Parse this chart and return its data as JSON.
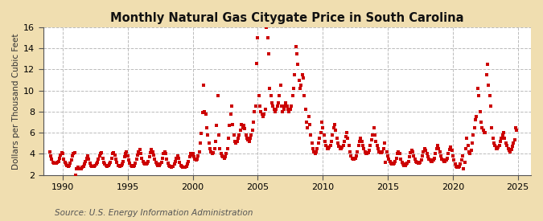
{
  "title": "Monthly Natural Gas Citygate Price in South Carolina",
  "ylabel": "Dollars per Thousand Cubic Feet",
  "source": "Source: U.S. Energy Information Administration",
  "outer_bg": "#f0deb0",
  "plot_bg": "#ffffff",
  "dot_color": "#cc0000",
  "xlim": [
    1988.5,
    2026.0
  ],
  "ylim": [
    2,
    16
  ],
  "yticks": [
    2,
    4,
    6,
    8,
    10,
    12,
    14,
    16
  ],
  "xticks": [
    1990,
    1995,
    2000,
    2005,
    2010,
    2015,
    2020,
    2025
  ],
  "data": [
    [
      1989.0,
      4.2
    ],
    [
      1989.083,
      3.8
    ],
    [
      1989.167,
      3.5
    ],
    [
      1989.25,
      3.2
    ],
    [
      1989.333,
      3.1
    ],
    [
      1989.417,
      3.1
    ],
    [
      1989.5,
      3.1
    ],
    [
      1989.583,
      3.2
    ],
    [
      1989.667,
      3.3
    ],
    [
      1989.75,
      3.6
    ],
    [
      1989.833,
      3.9
    ],
    [
      1989.917,
      4.1
    ],
    [
      1990.0,
      4.0
    ],
    [
      1990.083,
      3.5
    ],
    [
      1990.167,
      3.2
    ],
    [
      1990.25,
      3.0
    ],
    [
      1990.333,
      2.9
    ],
    [
      1990.417,
      2.8
    ],
    [
      1990.5,
      2.9
    ],
    [
      1990.583,
      3.1
    ],
    [
      1990.667,
      3.4
    ],
    [
      1990.75,
      3.8
    ],
    [
      1990.833,
      4.0
    ],
    [
      1990.917,
      4.1
    ],
    [
      1991.0,
      2.0
    ],
    [
      1991.083,
      2.6
    ],
    [
      1991.167,
      2.7
    ],
    [
      1991.25,
      2.6
    ],
    [
      1991.333,
      2.6
    ],
    [
      1991.417,
      2.6
    ],
    [
      1991.5,
      2.7
    ],
    [
      1991.583,
      2.8
    ],
    [
      1991.667,
      3.0
    ],
    [
      1991.75,
      3.3
    ],
    [
      1991.833,
      3.6
    ],
    [
      1991.917,
      3.8
    ],
    [
      1992.0,
      3.5
    ],
    [
      1992.083,
      3.1
    ],
    [
      1992.167,
      2.9
    ],
    [
      1992.25,
      2.8
    ],
    [
      1992.333,
      2.8
    ],
    [
      1992.417,
      2.8
    ],
    [
      1992.5,
      2.9
    ],
    [
      1992.583,
      3.0
    ],
    [
      1992.667,
      3.2
    ],
    [
      1992.75,
      3.5
    ],
    [
      1992.833,
      3.8
    ],
    [
      1992.917,
      4.0
    ],
    [
      1993.0,
      4.1
    ],
    [
      1993.083,
      3.6
    ],
    [
      1993.167,
      3.2
    ],
    [
      1993.25,
      3.0
    ],
    [
      1993.333,
      2.9
    ],
    [
      1993.417,
      2.8
    ],
    [
      1993.5,
      2.9
    ],
    [
      1993.583,
      3.0
    ],
    [
      1993.667,
      3.2
    ],
    [
      1993.75,
      3.6
    ],
    [
      1993.833,
      4.0
    ],
    [
      1993.917,
      4.1
    ],
    [
      1994.0,
      3.9
    ],
    [
      1994.083,
      3.5
    ],
    [
      1994.167,
      3.2
    ],
    [
      1994.25,
      2.9
    ],
    [
      1994.333,
      2.9
    ],
    [
      1994.417,
      2.8
    ],
    [
      1994.5,
      2.9
    ],
    [
      1994.583,
      3.0
    ],
    [
      1994.667,
      3.3
    ],
    [
      1994.75,
      3.7
    ],
    [
      1994.833,
      4.0
    ],
    [
      1994.917,
      4.2
    ],
    [
      1995.0,
      3.8
    ],
    [
      1995.083,
      3.4
    ],
    [
      1995.167,
      3.1
    ],
    [
      1995.25,
      2.9
    ],
    [
      1995.333,
      2.8
    ],
    [
      1995.417,
      2.8
    ],
    [
      1995.5,
      2.9
    ],
    [
      1995.583,
      3.1
    ],
    [
      1995.667,
      3.5
    ],
    [
      1995.75,
      3.9
    ],
    [
      1995.833,
      4.2
    ],
    [
      1995.917,
      4.4
    ],
    [
      1996.0,
      4.0
    ],
    [
      1996.083,
      3.6
    ],
    [
      1996.167,
      3.3
    ],
    [
      1996.25,
      3.1
    ],
    [
      1996.333,
      3.0
    ],
    [
      1996.417,
      3.0
    ],
    [
      1996.5,
      3.1
    ],
    [
      1996.583,
      3.3
    ],
    [
      1996.667,
      3.7
    ],
    [
      1996.75,
      4.1
    ],
    [
      1996.833,
      4.4
    ],
    [
      1996.917,
      4.2
    ],
    [
      1997.0,
      3.9
    ],
    [
      1997.083,
      3.5
    ],
    [
      1997.167,
      3.2
    ],
    [
      1997.25,
      3.0
    ],
    [
      1997.333,
      2.9
    ],
    [
      1997.417,
      2.9
    ],
    [
      1997.5,
      3.0
    ],
    [
      1997.583,
      3.2
    ],
    [
      1997.667,
      3.6
    ],
    [
      1997.75,
      4.0
    ],
    [
      1997.833,
      4.2
    ],
    [
      1997.917,
      4.0
    ],
    [
      1998.0,
      3.5
    ],
    [
      1998.083,
      3.1
    ],
    [
      1998.167,
      2.9
    ],
    [
      1998.25,
      2.8
    ],
    [
      1998.333,
      2.7
    ],
    [
      1998.417,
      2.8
    ],
    [
      1998.5,
      2.8
    ],
    [
      1998.583,
      3.0
    ],
    [
      1998.667,
      3.3
    ],
    [
      1998.75,
      3.6
    ],
    [
      1998.833,
      3.8
    ],
    [
      1998.917,
      3.6
    ],
    [
      1999.0,
      3.2
    ],
    [
      1999.083,
      2.9
    ],
    [
      1999.167,
      2.8
    ],
    [
      1999.25,
      2.7
    ],
    [
      1999.333,
      2.7
    ],
    [
      1999.417,
      2.7
    ],
    [
      1999.5,
      2.8
    ],
    [
      1999.583,
      3.0
    ],
    [
      1999.667,
      3.3
    ],
    [
      1999.75,
      3.7
    ],
    [
      1999.833,
      4.0
    ],
    [
      1999.917,
      3.9
    ],
    [
      2000.0,
      4.0
    ],
    [
      2000.083,
      3.7
    ],
    [
      2000.167,
      3.5
    ],
    [
      2000.25,
      3.4
    ],
    [
      2000.333,
      3.5
    ],
    [
      2000.417,
      3.8
    ],
    [
      2000.5,
      4.2
    ],
    [
      2000.583,
      5.0
    ],
    [
      2000.667,
      5.9
    ],
    [
      2000.75,
      7.9
    ],
    [
      2000.833,
      10.5
    ],
    [
      2000.917,
      8.0
    ],
    [
      2001.0,
      7.8
    ],
    [
      2001.083,
      6.5
    ],
    [
      2001.167,
      5.8
    ],
    [
      2001.25,
      5.0
    ],
    [
      2001.333,
      4.5
    ],
    [
      2001.417,
      4.2
    ],
    [
      2001.5,
      4.0
    ],
    [
      2001.583,
      4.1
    ],
    [
      2001.667,
      4.5
    ],
    [
      2001.75,
      5.2
    ],
    [
      2001.833,
      6.7
    ],
    [
      2001.917,
      9.5
    ],
    [
      2002.0,
      5.8
    ],
    [
      2002.083,
      4.5
    ],
    [
      2002.167,
      4.0
    ],
    [
      2002.25,
      3.8
    ],
    [
      2002.333,
      3.7
    ],
    [
      2002.417,
      3.6
    ],
    [
      2002.5,
      3.7
    ],
    [
      2002.583,
      4.0
    ],
    [
      2002.667,
      4.5
    ],
    [
      2002.75,
      5.5
    ],
    [
      2002.833,
      6.7
    ],
    [
      2002.917,
      7.8
    ],
    [
      2003.0,
      8.5
    ],
    [
      2003.083,
      6.8
    ],
    [
      2003.167,
      5.8
    ],
    [
      2003.25,
      5.2
    ],
    [
      2003.333,
      5.0
    ],
    [
      2003.417,
      5.2
    ],
    [
      2003.5,
      5.5
    ],
    [
      2003.583,
      5.8
    ],
    [
      2003.667,
      6.2
    ],
    [
      2003.75,
      6.8
    ],
    [
      2003.833,
      6.5
    ],
    [
      2003.917,
      6.7
    ],
    [
      2004.0,
      6.4
    ],
    [
      2004.083,
      5.8
    ],
    [
      2004.167,
      5.5
    ],
    [
      2004.25,
      5.3
    ],
    [
      2004.333,
      5.2
    ],
    [
      2004.417,
      5.5
    ],
    [
      2004.5,
      5.8
    ],
    [
      2004.583,
      6.2
    ],
    [
      2004.667,
      7.0
    ],
    [
      2004.75,
      8.0
    ],
    [
      2004.833,
      8.5
    ],
    [
      2004.917,
      12.6
    ],
    [
      2005.0,
      15.0
    ],
    [
      2005.083,
      9.5
    ],
    [
      2005.167,
      8.5
    ],
    [
      2005.25,
      8.0
    ],
    [
      2005.333,
      7.8
    ],
    [
      2005.417,
      7.5
    ],
    [
      2005.5,
      7.8
    ],
    [
      2005.583,
      8.2
    ],
    [
      2005.667,
      16.0
    ],
    [
      2005.75,
      15.0
    ],
    [
      2005.833,
      13.5
    ],
    [
      2005.917,
      10.2
    ],
    [
      2006.0,
      9.5
    ],
    [
      2006.083,
      8.8
    ],
    [
      2006.167,
      8.5
    ],
    [
      2006.25,
      8.2
    ],
    [
      2006.333,
      8.0
    ],
    [
      2006.417,
      8.2
    ],
    [
      2006.5,
      8.5
    ],
    [
      2006.583,
      8.8
    ],
    [
      2006.667,
      9.5
    ],
    [
      2006.75,
      10.5
    ],
    [
      2006.833,
      8.5
    ],
    [
      2006.917,
      8.0
    ],
    [
      2007.0,
      8.2
    ],
    [
      2007.083,
      8.5
    ],
    [
      2007.167,
      8.8
    ],
    [
      2007.25,
      8.5
    ],
    [
      2007.333,
      8.2
    ],
    [
      2007.417,
      8.0
    ],
    [
      2007.5,
      8.2
    ],
    [
      2007.583,
      8.5
    ],
    [
      2007.667,
      9.5
    ],
    [
      2007.75,
      10.2
    ],
    [
      2007.833,
      11.5
    ],
    [
      2007.917,
      14.2
    ],
    [
      2008.0,
      13.5
    ],
    [
      2008.083,
      12.5
    ],
    [
      2008.167,
      11.0
    ],
    [
      2008.25,
      10.2
    ],
    [
      2008.333,
      10.5
    ],
    [
      2008.417,
      11.5
    ],
    [
      2008.5,
      11.2
    ],
    [
      2008.583,
      9.5
    ],
    [
      2008.667,
      8.2
    ],
    [
      2008.75,
      7.0
    ],
    [
      2008.833,
      6.5
    ],
    [
      2008.917,
      7.5
    ],
    [
      2009.0,
      6.8
    ],
    [
      2009.083,
      5.8
    ],
    [
      2009.167,
      5.0
    ],
    [
      2009.25,
      4.5
    ],
    [
      2009.333,
      4.2
    ],
    [
      2009.417,
      4.0
    ],
    [
      2009.5,
      4.2
    ],
    [
      2009.583,
      4.5
    ],
    [
      2009.667,
      5.0
    ],
    [
      2009.75,
      5.5
    ],
    [
      2009.833,
      6.0
    ],
    [
      2009.917,
      7.0
    ],
    [
      2010.0,
      6.5
    ],
    [
      2010.083,
      5.8
    ],
    [
      2010.167,
      5.2
    ],
    [
      2010.25,
      4.8
    ],
    [
      2010.333,
      4.5
    ],
    [
      2010.417,
      4.5
    ],
    [
      2010.5,
      4.6
    ],
    [
      2010.583,
      4.8
    ],
    [
      2010.667,
      5.2
    ],
    [
      2010.75,
      5.8
    ],
    [
      2010.833,
      6.5
    ],
    [
      2010.917,
      6.8
    ],
    [
      2011.0,
      6.2
    ],
    [
      2011.083,
      5.5
    ],
    [
      2011.167,
      5.0
    ],
    [
      2011.25,
      4.7
    ],
    [
      2011.333,
      4.5
    ],
    [
      2011.417,
      4.5
    ],
    [
      2011.5,
      4.6
    ],
    [
      2011.583,
      4.8
    ],
    [
      2011.667,
      5.2
    ],
    [
      2011.75,
      5.6
    ],
    [
      2011.833,
      6.0
    ],
    [
      2011.917,
      5.5
    ],
    [
      2012.0,
      4.8
    ],
    [
      2012.083,
      4.2
    ],
    [
      2012.167,
      3.8
    ],
    [
      2012.25,
      3.6
    ],
    [
      2012.333,
      3.5
    ],
    [
      2012.417,
      3.5
    ],
    [
      2012.5,
      3.6
    ],
    [
      2012.583,
      3.8
    ],
    [
      2012.667,
      4.2
    ],
    [
      2012.75,
      4.8
    ],
    [
      2012.833,
      5.2
    ],
    [
      2012.917,
      5.5
    ],
    [
      2013.0,
      5.2
    ],
    [
      2013.083,
      4.8
    ],
    [
      2013.167,
      4.5
    ],
    [
      2013.25,
      4.2
    ],
    [
      2013.333,
      4.0
    ],
    [
      2013.417,
      4.0
    ],
    [
      2013.5,
      4.1
    ],
    [
      2013.583,
      4.3
    ],
    [
      2013.667,
      4.8
    ],
    [
      2013.75,
      5.3
    ],
    [
      2013.833,
      5.8
    ],
    [
      2013.917,
      6.5
    ],
    [
      2014.0,
      5.8
    ],
    [
      2014.083,
      5.2
    ],
    [
      2014.167,
      4.8
    ],
    [
      2014.25,
      4.5
    ],
    [
      2014.333,
      4.2
    ],
    [
      2014.417,
      4.1
    ],
    [
      2014.5,
      4.1
    ],
    [
      2014.583,
      4.2
    ],
    [
      2014.667,
      4.5
    ],
    [
      2014.75,
      5.0
    ],
    [
      2014.833,
      3.2
    ],
    [
      2014.917,
      4.2
    ],
    [
      2015.0,
      3.8
    ],
    [
      2015.083,
      3.5
    ],
    [
      2015.167,
      3.3
    ],
    [
      2015.25,
      3.1
    ],
    [
      2015.333,
      3.0
    ],
    [
      2015.417,
      3.0
    ],
    [
      2015.5,
      3.1
    ],
    [
      2015.583,
      3.3
    ],
    [
      2015.667,
      3.6
    ],
    [
      2015.75,
      4.0
    ],
    [
      2015.833,
      4.2
    ],
    [
      2015.917,
      4.0
    ],
    [
      2016.0,
      3.5
    ],
    [
      2016.083,
      3.2
    ],
    [
      2016.167,
      3.0
    ],
    [
      2016.25,
      2.9
    ],
    [
      2016.333,
      2.9
    ],
    [
      2016.417,
      3.0
    ],
    [
      2016.5,
      3.1
    ],
    [
      2016.583,
      3.3
    ],
    [
      2016.667,
      3.7
    ],
    [
      2016.75,
      4.1
    ],
    [
      2016.833,
      4.3
    ],
    [
      2016.917,
      4.2
    ],
    [
      2017.0,
      3.8
    ],
    [
      2017.083,
      3.5
    ],
    [
      2017.167,
      3.3
    ],
    [
      2017.25,
      3.2
    ],
    [
      2017.333,
      3.1
    ],
    [
      2017.417,
      3.1
    ],
    [
      2017.5,
      3.2
    ],
    [
      2017.583,
      3.4
    ],
    [
      2017.667,
      3.8
    ],
    [
      2017.75,
      4.2
    ],
    [
      2017.833,
      4.5
    ],
    [
      2017.917,
      4.3
    ],
    [
      2018.0,
      4.0
    ],
    [
      2018.083,
      3.7
    ],
    [
      2018.167,
      3.5
    ],
    [
      2018.25,
      3.4
    ],
    [
      2018.333,
      3.3
    ],
    [
      2018.417,
      3.3
    ],
    [
      2018.5,
      3.4
    ],
    [
      2018.583,
      3.6
    ],
    [
      2018.667,
      4.0
    ],
    [
      2018.75,
      4.5
    ],
    [
      2018.833,
      4.8
    ],
    [
      2018.917,
      4.5
    ],
    [
      2019.0,
      4.2
    ],
    [
      2019.083,
      3.8
    ],
    [
      2019.167,
      3.5
    ],
    [
      2019.25,
      3.4
    ],
    [
      2019.333,
      3.3
    ],
    [
      2019.417,
      3.3
    ],
    [
      2019.5,
      3.4
    ],
    [
      2019.583,
      3.6
    ],
    [
      2019.667,
      4.0
    ],
    [
      2019.75,
      4.4
    ],
    [
      2019.833,
      4.6
    ],
    [
      2019.917,
      4.3
    ],
    [
      2020.0,
      3.8
    ],
    [
      2020.083,
      3.4
    ],
    [
      2020.167,
      3.0
    ],
    [
      2020.25,
      2.8
    ],
    [
      2020.333,
      2.7
    ],
    [
      2020.417,
      2.7
    ],
    [
      2020.5,
      2.8
    ],
    [
      2020.583,
      3.0
    ],
    [
      2020.667,
      3.4
    ],
    [
      2020.75,
      3.8
    ],
    [
      2020.833,
      2.6
    ],
    [
      2020.917,
      3.2
    ],
    [
      2021.0,
      4.5
    ],
    [
      2021.083,
      5.5
    ],
    [
      2021.167,
      4.8
    ],
    [
      2021.25,
      4.2
    ],
    [
      2021.333,
      4.0
    ],
    [
      2021.417,
      4.3
    ],
    [
      2021.5,
      5.0
    ],
    [
      2021.583,
      5.8
    ],
    [
      2021.667,
      6.5
    ],
    [
      2021.75,
      7.2
    ],
    [
      2021.833,
      7.5
    ],
    [
      2021.917,
      10.2
    ],
    [
      2022.0,
      9.5
    ],
    [
      2022.083,
      8.0
    ],
    [
      2022.167,
      7.0
    ],
    [
      2022.25,
      6.5
    ],
    [
      2022.333,
      6.2
    ],
    [
      2022.417,
      6.0
    ],
    [
      2022.5,
      6.0
    ],
    [
      2022.583,
      11.5
    ],
    [
      2022.667,
      12.5
    ],
    [
      2022.75,
      10.5
    ],
    [
      2022.833,
      9.5
    ],
    [
      2022.917,
      8.5
    ],
    [
      2023.0,
      6.5
    ],
    [
      2023.083,
      5.5
    ],
    [
      2023.167,
      5.0
    ],
    [
      2023.25,
      4.8
    ],
    [
      2023.333,
      4.5
    ],
    [
      2023.417,
      4.5
    ],
    [
      2023.5,
      4.6
    ],
    [
      2023.583,
      4.8
    ],
    [
      2023.667,
      5.2
    ],
    [
      2023.75,
      5.5
    ],
    [
      2023.833,
      5.8
    ],
    [
      2023.917,
      6.0
    ],
    [
      2024.0,
      5.5
    ],
    [
      2024.083,
      5.0
    ],
    [
      2024.167,
      4.8
    ],
    [
      2024.25,
      4.5
    ],
    [
      2024.333,
      4.3
    ],
    [
      2024.417,
      4.2
    ],
    [
      2024.5,
      4.4
    ],
    [
      2024.583,
      4.7
    ],
    [
      2024.667,
      5.0
    ],
    [
      2024.75,
      5.3
    ],
    [
      2024.833,
      6.5
    ],
    [
      2024.917,
      6.2
    ]
  ]
}
